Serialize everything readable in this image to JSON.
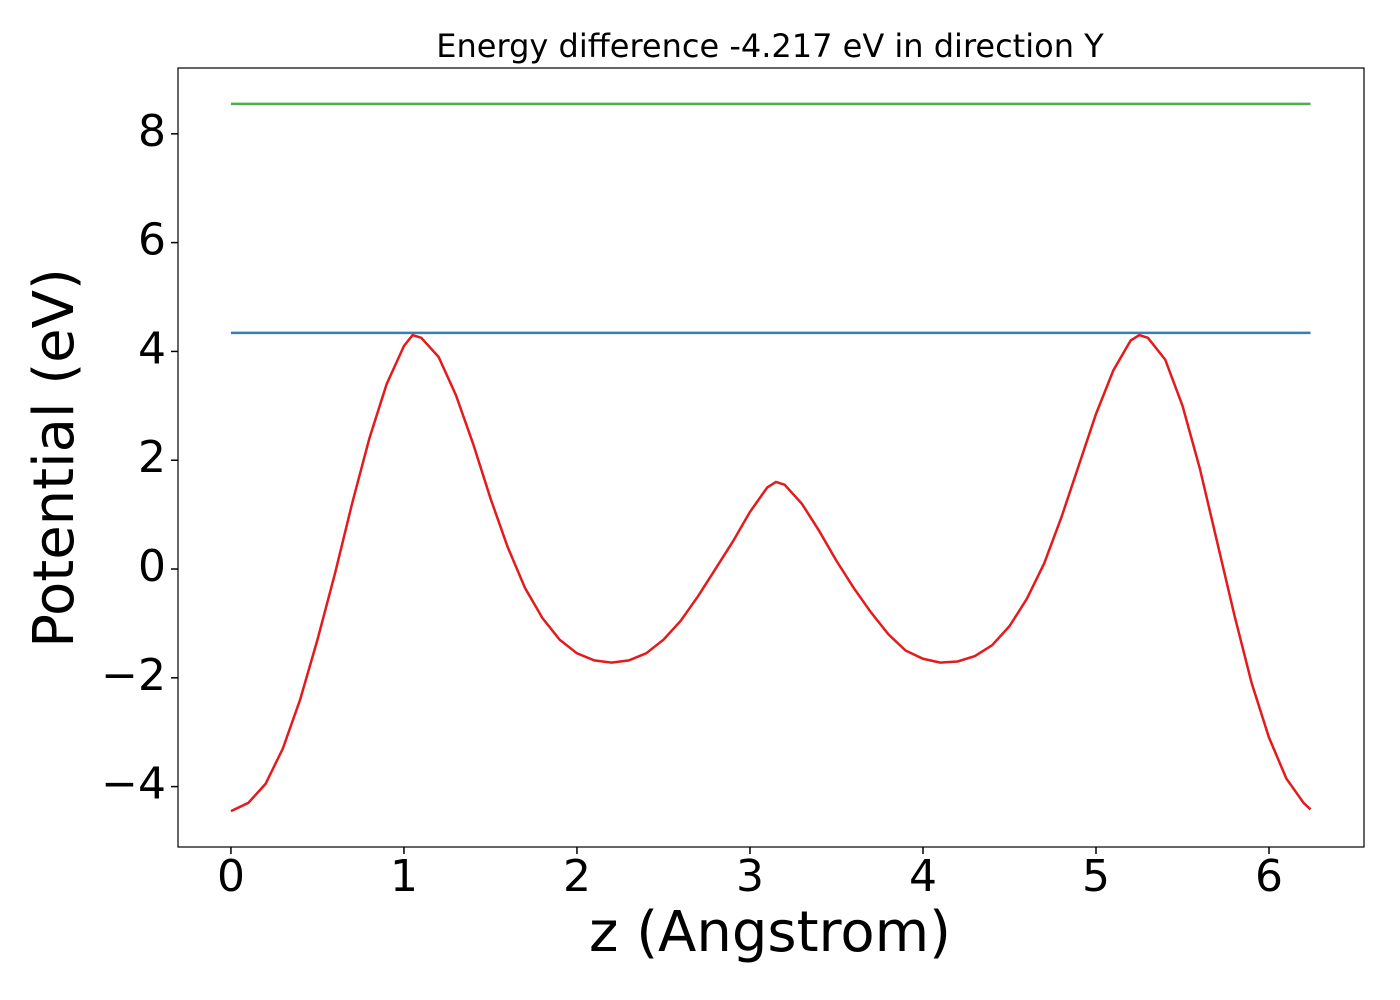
{
  "chart_data": {
    "type": "line",
    "title": "Energy difference -4.217 eV in direction Y",
    "xlabel": "z (Angstrom)",
    "ylabel": "Potential (eV)",
    "xlim": [
      -0.306,
      6.549
    ],
    "ylim": [
      -5.11,
      9.21
    ],
    "xticks": [
      0,
      1,
      2,
      3,
      4,
      5,
      6
    ],
    "yticks": [
      {
        "value": -4,
        "label": "−4"
      },
      {
        "value": -2,
        "label": "−2"
      },
      0,
      2,
      4,
      6,
      8
    ],
    "grid": false,
    "series": [
      {
        "color": "#4daf4a",
        "x": [
          0,
          6.24
        ],
        "values": [
          8.55,
          8.55
        ]
      },
      {
        "color": "#377eb8",
        "x": [
          0,
          6.24
        ],
        "values": [
          4.34,
          4.34
        ]
      },
      {
        "color": "#e41a1c",
        "x": [
          0,
          0.1,
          0.2,
          0.3,
          0.4,
          0.5,
          0.6,
          0.7,
          0.8,
          0.9,
          1.0,
          1.05,
          1.1,
          1.2,
          1.3,
          1.4,
          1.5,
          1.6,
          1.7,
          1.8,
          1.9,
          2.0,
          2.1,
          2.2,
          2.3,
          2.4,
          2.5,
          2.6,
          2.7,
          2.8,
          2.9,
          3.0,
          3.1,
          3.15,
          3.2,
          3.3,
          3.4,
          3.5,
          3.6,
          3.7,
          3.8,
          3.9,
          4.0,
          4.1,
          4.2,
          4.3,
          4.4,
          4.5,
          4.6,
          4.7,
          4.8,
          4.9,
          5.0,
          5.1,
          5.2,
          5.25,
          5.3,
          5.4,
          5.5,
          5.6,
          5.7,
          5.8,
          5.9,
          6.0,
          6.1,
          6.2,
          6.24
        ],
        "values": [
          -4.45,
          -4.3,
          -3.95,
          -3.3,
          -2.4,
          -1.3,
          -0.1,
          1.2,
          2.4,
          3.4,
          4.1,
          4.3,
          4.25,
          3.9,
          3.2,
          2.3,
          1.3,
          0.4,
          -0.35,
          -0.9,
          -1.3,
          -1.55,
          -1.68,
          -1.72,
          -1.68,
          -1.55,
          -1.3,
          -0.95,
          -0.5,
          0.0,
          0.5,
          1.05,
          1.5,
          1.6,
          1.55,
          1.2,
          0.7,
          0.15,
          -0.35,
          -0.8,
          -1.2,
          -1.5,
          -1.65,
          -1.72,
          -1.7,
          -1.6,
          -1.4,
          -1.05,
          -0.55,
          0.1,
          0.95,
          1.9,
          2.85,
          3.65,
          4.2,
          4.3,
          4.25,
          3.85,
          3.0,
          1.85,
          0.5,
          -0.85,
          -2.1,
          -3.1,
          -3.85,
          -4.3,
          -4.42
        ]
      }
    ]
  }
}
